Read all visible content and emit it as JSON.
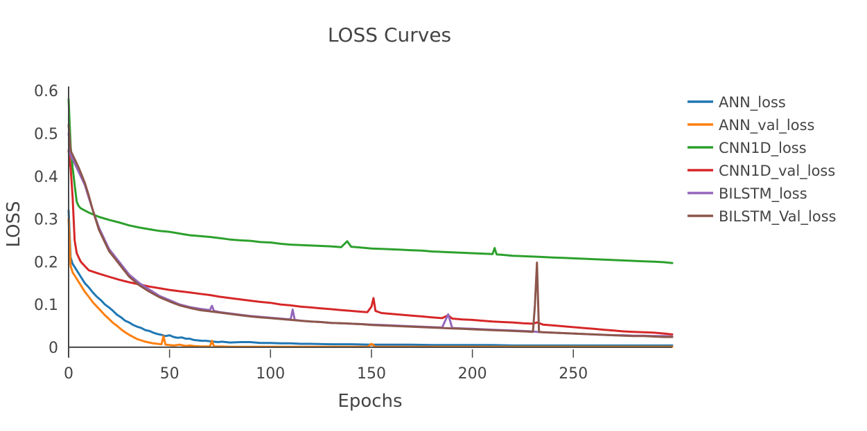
{
  "chart_data": {
    "type": "line",
    "title": "LOSS Curves",
    "xlabel": "Epochs",
    "ylabel": "LOSS",
    "xlim": [
      0,
      299
    ],
    "ylim": [
      -0.005,
      0.61
    ],
    "xticks": [
      0,
      50,
      100,
      150,
      200,
      250
    ],
    "yticks": [
      0,
      0.1,
      0.2,
      0.3,
      0.4,
      0.5,
      0.6
    ],
    "ytick_labels": [
      "0",
      "0.1",
      "0.2",
      "0.3",
      "0.4",
      "0.5",
      "0.6"
    ],
    "grid": false,
    "legend_position": "right",
    "series": [
      {
        "name": "ANN_loss",
        "color": "#1f77b4",
        "x": [
          0,
          1,
          2,
          4,
          6,
          8,
          10,
          12,
          14,
          16,
          18,
          20,
          22,
          24,
          26,
          28,
          30,
          32,
          34,
          36,
          38,
          40,
          42,
          44,
          46,
          48,
          50,
          52,
          54,
          56,
          58,
          60,
          62,
          64,
          66,
          68,
          70,
          72,
          74,
          76,
          78,
          80,
          85,
          90,
          95,
          100,
          105,
          110,
          115,
          120,
          130,
          140,
          150,
          160,
          170,
          180,
          190,
          200,
          210,
          220,
          230,
          240,
          250,
          260,
          270,
          280,
          290,
          299
        ],
        "y": [
          0.32,
          0.21,
          0.195,
          0.18,
          0.165,
          0.15,
          0.14,
          0.128,
          0.118,
          0.11,
          0.1,
          0.093,
          0.085,
          0.076,
          0.07,
          0.062,
          0.058,
          0.052,
          0.048,
          0.045,
          0.04,
          0.038,
          0.034,
          0.031,
          0.029,
          0.026,
          0.028,
          0.024,
          0.022,
          0.023,
          0.02,
          0.02,
          0.017,
          0.016,
          0.015,
          0.015,
          0.014,
          0.013,
          0.012,
          0.013,
          0.012,
          0.011,
          0.012,
          0.012,
          0.01,
          0.01,
          0.009,
          0.009,
          0.008,
          0.008,
          0.007,
          0.007,
          0.006,
          0.006,
          0.006,
          0.005,
          0.005,
          0.005,
          0.005,
          0.004,
          0.004,
          0.004,
          0.004,
          0.004,
          0.004,
          0.004,
          0.004,
          0.004
        ]
      },
      {
        "name": "ANN_val_loss",
        "color": "#ff7f0e",
        "x": [
          0,
          1,
          2,
          4,
          6,
          8,
          10,
          12,
          14,
          16,
          18,
          20,
          22,
          24,
          26,
          28,
          30,
          32,
          34,
          36,
          38,
          40,
          42,
          44,
          46,
          47,
          48,
          50,
          52,
          55,
          58,
          60,
          62,
          65,
          68,
          70,
          71,
          72,
          75,
          80,
          85,
          90,
          95,
          100,
          110,
          120,
          130,
          140,
          148,
          150,
          152,
          160,
          170,
          180,
          190,
          200,
          220,
          240,
          260,
          280,
          299
        ],
        "y": [
          0.3,
          0.19,
          0.175,
          0.16,
          0.145,
          0.13,
          0.118,
          0.105,
          0.095,
          0.085,
          0.075,
          0.066,
          0.057,
          0.05,
          0.042,
          0.035,
          0.029,
          0.024,
          0.019,
          0.016,
          0.013,
          0.011,
          0.009,
          0.008,
          0.007,
          0.026,
          0.006,
          0.005,
          0.004,
          0.006,
          0.003,
          0.004,
          0.003,
          0.002,
          0.002,
          0.002,
          0.015,
          0.002,
          0.002,
          0.001,
          0.001,
          0.001,
          0.001,
          0.001,
          0.001,
          0.001,
          0.001,
          0.001,
          0.001,
          0.008,
          0.001,
          0.001,
          0.001,
          0.001,
          0.001,
          0.001,
          0.001,
          0.001,
          0.001,
          0.001,
          0.001
        ]
      },
      {
        "name": "CNN1D_loss",
        "color": "#2ca02c",
        "x": [
          0,
          1,
          2,
          3,
          4,
          5,
          6,
          8,
          10,
          15,
          20,
          25,
          30,
          35,
          40,
          45,
          50,
          55,
          60,
          65,
          70,
          75,
          80,
          85,
          90,
          95,
          100,
          105,
          110,
          115,
          120,
          125,
          130,
          135,
          138,
          140,
          145,
          150,
          155,
          160,
          165,
          170,
          175,
          180,
          185,
          190,
          195,
          200,
          205,
          210,
          211,
          212,
          215,
          220,
          225,
          230,
          235,
          240,
          245,
          250,
          255,
          260,
          265,
          270,
          275,
          280,
          285,
          290,
          295,
          299
        ],
        "y": [
          0.58,
          0.47,
          0.42,
          0.38,
          0.34,
          0.33,
          0.325,
          0.32,
          0.315,
          0.305,
          0.298,
          0.292,
          0.285,
          0.28,
          0.276,
          0.272,
          0.27,
          0.266,
          0.262,
          0.26,
          0.258,
          0.255,
          0.252,
          0.25,
          0.249,
          0.246,
          0.245,
          0.242,
          0.24,
          0.239,
          0.238,
          0.237,
          0.236,
          0.234,
          0.248,
          0.235,
          0.233,
          0.231,
          0.23,
          0.229,
          0.228,
          0.227,
          0.226,
          0.224,
          0.223,
          0.222,
          0.221,
          0.22,
          0.219,
          0.218,
          0.232,
          0.217,
          0.216,
          0.214,
          0.213,
          0.212,
          0.211,
          0.21,
          0.209,
          0.208,
          0.207,
          0.206,
          0.205,
          0.204,
          0.203,
          0.202,
          0.201,
          0.2,
          0.199,
          0.197
        ]
      },
      {
        "name": "CNN1D_val_loss",
        "color": "#d62728",
        "x": [
          0,
          1,
          2,
          3,
          4,
          5,
          6,
          8,
          10,
          15,
          20,
          25,
          30,
          35,
          40,
          45,
          50,
          55,
          60,
          65,
          70,
          75,
          80,
          85,
          90,
          95,
          100,
          105,
          110,
          115,
          120,
          125,
          130,
          135,
          140,
          145,
          148,
          150,
          151,
          152,
          155,
          160,
          165,
          170,
          175,
          180,
          185,
          188,
          190,
          195,
          200,
          205,
          210,
          215,
          220,
          225,
          230,
          232,
          235,
          240,
          245,
          250,
          255,
          260,
          265,
          270,
          275,
          280,
          285,
          290,
          295,
          299
        ],
        "y": [
          0.46,
          0.42,
          0.35,
          0.25,
          0.22,
          0.21,
          0.2,
          0.19,
          0.18,
          0.172,
          0.165,
          0.158,
          0.152,
          0.147,
          0.142,
          0.138,
          0.134,
          0.131,
          0.128,
          0.125,
          0.122,
          0.118,
          0.115,
          0.112,
          0.109,
          0.106,
          0.104,
          0.1,
          0.098,
          0.095,
          0.093,
          0.091,
          0.089,
          0.087,
          0.085,
          0.083,
          0.082,
          0.095,
          0.115,
          0.085,
          0.08,
          0.078,
          0.076,
          0.074,
          0.072,
          0.07,
          0.068,
          0.075,
          0.067,
          0.065,
          0.064,
          0.062,
          0.06,
          0.059,
          0.058,
          0.056,
          0.055,
          0.058,
          0.053,
          0.051,
          0.049,
          0.047,
          0.045,
          0.043,
          0.041,
          0.039,
          0.037,
          0.036,
          0.035,
          0.034,
          0.032,
          0.03
        ]
      },
      {
        "name": "BILSTM_loss",
        "color": "#9467bd",
        "x": [
          0,
          1,
          2,
          3,
          5,
          8,
          10,
          12,
          15,
          18,
          20,
          25,
          30,
          35,
          40,
          45,
          50,
          55,
          60,
          65,
          70,
          71,
          72,
          75,
          80,
          85,
          90,
          95,
          100,
          105,
          110,
          111,
          112,
          115,
          120,
          125,
          130,
          135,
          140,
          145,
          150,
          155,
          160,
          165,
          170,
          175,
          180,
          185,
          188,
          190,
          195,
          200,
          205,
          210,
          215,
          220,
          225,
          230,
          232,
          235,
          240,
          245,
          250,
          255,
          260,
          265,
          270,
          275,
          280,
          285,
          290,
          295,
          299
        ],
        "y": [
          0.5,
          0.45,
          0.44,
          0.43,
          0.41,
          0.38,
          0.35,
          0.32,
          0.28,
          0.25,
          0.23,
          0.2,
          0.17,
          0.15,
          0.135,
          0.12,
          0.11,
          0.1,
          0.094,
          0.09,
          0.087,
          0.097,
          0.085,
          0.082,
          0.079,
          0.076,
          0.073,
          0.071,
          0.069,
          0.067,
          0.065,
          0.088,
          0.064,
          0.062,
          0.06,
          0.059,
          0.057,
          0.056,
          0.055,
          0.054,
          0.053,
          0.052,
          0.051,
          0.05,
          0.049,
          0.048,
          0.047,
          0.046,
          0.077,
          0.045,
          0.044,
          0.043,
          0.042,
          0.041,
          0.04,
          0.039,
          0.038,
          0.037,
          0.036,
          0.035,
          0.034,
          0.033,
          0.032,
          0.031,
          0.03,
          0.029,
          0.028,
          0.028,
          0.027,
          0.027,
          0.026,
          0.026,
          0.025
        ]
      },
      {
        "name": "BILSTM_Val_loss",
        "color": "#8c564b",
        "x": [
          0,
          1,
          2,
          3,
          5,
          8,
          10,
          12,
          15,
          18,
          20,
          25,
          30,
          35,
          40,
          45,
          50,
          55,
          60,
          65,
          70,
          75,
          80,
          85,
          90,
          95,
          100,
          105,
          110,
          115,
          120,
          125,
          130,
          135,
          140,
          145,
          150,
          155,
          160,
          165,
          170,
          175,
          180,
          185,
          190,
          195,
          200,
          205,
          210,
          215,
          220,
          225,
          230,
          231,
          232,
          233,
          235,
          240,
          245,
          250,
          255,
          260,
          265,
          270,
          275,
          280,
          285,
          290,
          295,
          299
        ],
        "y": [
          0.52,
          0.46,
          0.45,
          0.44,
          0.42,
          0.385,
          0.355,
          0.32,
          0.275,
          0.245,
          0.225,
          0.195,
          0.165,
          0.145,
          0.13,
          0.117,
          0.107,
          0.098,
          0.092,
          0.087,
          0.084,
          0.081,
          0.078,
          0.075,
          0.072,
          0.07,
          0.068,
          0.066,
          0.064,
          0.062,
          0.06,
          0.059,
          0.057,
          0.056,
          0.055,
          0.054,
          0.052,
          0.051,
          0.05,
          0.049,
          0.048,
          0.047,
          0.046,
          0.045,
          0.044,
          0.043,
          0.042,
          0.041,
          0.04,
          0.039,
          0.038,
          0.037,
          0.036,
          0.1,
          0.198,
          0.036,
          0.035,
          0.034,
          0.033,
          0.032,
          0.031,
          0.03,
          0.029,
          0.028,
          0.027,
          0.026,
          0.026,
          0.025,
          0.024,
          0.024
        ]
      }
    ]
  }
}
